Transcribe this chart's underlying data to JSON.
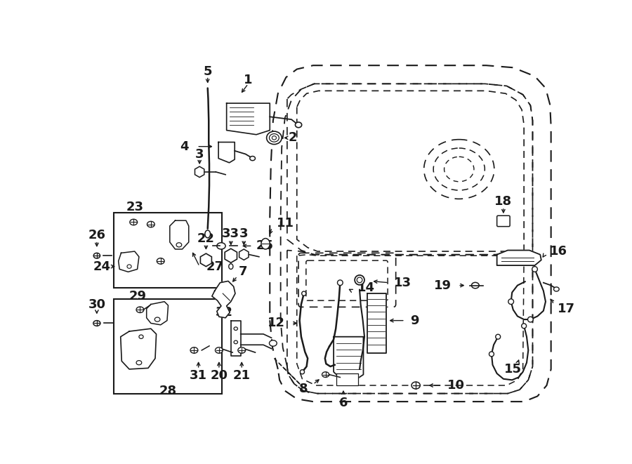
{
  "bg_color": "#ffffff",
  "line_color": "#1a1a1a",
  "figsize": [
    9.0,
    6.61
  ],
  "dpi": 100,
  "title": ""
}
